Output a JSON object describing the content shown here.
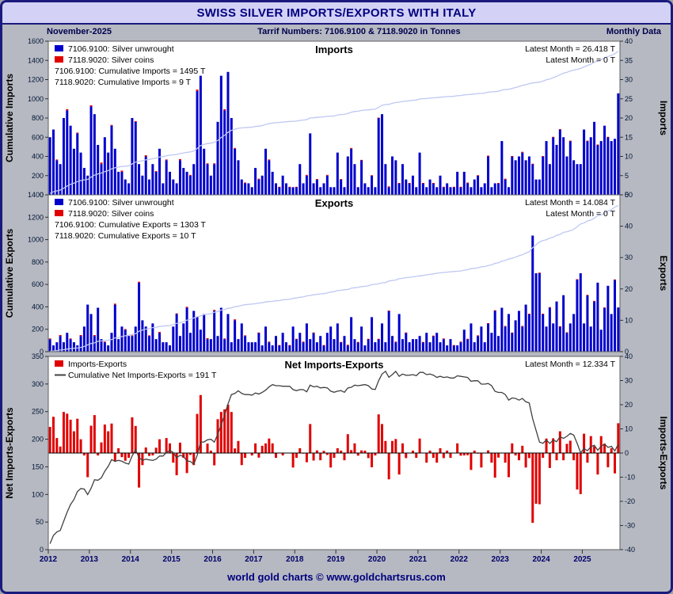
{
  "header": {
    "title": "SWISS SILVER IMPORTS/EXPORTS WITH ITALY"
  },
  "subheader": {
    "date": "November-2025",
    "tariff": "Tarrif Numbers: 7106.9100 & 7118.9020 in Tonnes",
    "frequency": "Monthly Data"
  },
  "footer": {
    "credit": "world gold charts © www.goldchartsrus.com"
  },
  "colors": {
    "bar_blue": "#0000cc",
    "bar_red": "#e00000",
    "cumulative_faint": "#bfc8f2",
    "cumulative_net": "#404040",
    "frame_navy": "#1a1a7e",
    "title_bg": "#d3d1f5",
    "margin_gray": "#b6b9c1"
  },
  "x_axis": {
    "start_year": 2012,
    "start_month": 1,
    "months": 167,
    "tick_years": [
      2012,
      2013,
      2014,
      2015,
      2016,
      2017,
      2018,
      2019,
      2020,
      2021,
      2022,
      2023,
      2024,
      2025
    ]
  },
  "chart_data": [
    {
      "type": "bar",
      "panel": "imports",
      "title": "Imports",
      "left_axis": {
        "label": "Cumulative Imports",
        "min": 0,
        "max": 1600,
        "step": 200
      },
      "right_axis": {
        "label": "Imports",
        "min": 0,
        "max": 40,
        "step": 5
      },
      "legend": [
        {
          "label": "7106.9100: Silver unwrought",
          "color": "#0000cc",
          "swatch": "box"
        },
        {
          "label": "7118.9020: Silver coins",
          "color": "#e00000",
          "swatch": "box"
        }
      ],
      "annotations_left": [
        "7106.9100: Cumulative Imports = 1495 T",
        "7118.9020: Cumulative Imports = 9 T"
      ],
      "annotations_right": [
        "Latest Month = 26.418 T",
        "Latest Month = 0 T"
      ],
      "latest_month_unwrought_t": 26.418,
      "latest_month_coins_t": 0,
      "cumulative": {
        "label": "Cumulative Imports",
        "color": "#bfc8f2",
        "axis": "left",
        "final_t": 1495
      },
      "series": [
        {
          "name": "7106.9100: Silver unwrought",
          "color": "#0000cc",
          "axis": "right",
          "values": [
            [
              15,
              17,
              9,
              8,
              20,
              22,
              18,
              12,
              16,
              11,
              7,
              5
            ],
            [
              23,
              21,
              13,
              8,
              15,
              11,
              18,
              12,
              6,
              6,
              4,
              3
            ],
            [
              20,
              19,
              8,
              5,
              10,
              4,
              8,
              6,
              12,
              3,
              9,
              6
            ],
            [
              4,
              3,
              9,
              7,
              6,
              5,
              8,
              27,
              31,
              12,
              8,
              5
            ],
            [
              8,
              19,
              31,
              22,
              32,
              20,
              12,
              9,
              4,
              3,
              3,
              2
            ],
            [
              7,
              4,
              5,
              12,
              9,
              6,
              3,
              2,
              5,
              3,
              2,
              2
            ],
            [
              2,
              8,
              3,
              5,
              16,
              3,
              4,
              2,
              3,
              5,
              2,
              2
            ],
            [
              11,
              4,
              2,
              10,
              12,
              8,
              2,
              9,
              3,
              2,
              5,
              2
            ],
            [
              20,
              21,
              8,
              2,
              10,
              9,
              3,
              8,
              4,
              3,
              5,
              2
            ],
            [
              11,
              3,
              2,
              4,
              3,
              2,
              5,
              2,
              3,
              2,
              2,
              6
            ],
            [
              2,
              6,
              3,
              2,
              4,
              5,
              2,
              3,
              10,
              2,
              3,
              3
            ],
            [
              14,
              4,
              2,
              10,
              9,
              10,
              11,
              9,
              10,
              8,
              4,
              4
            ],
            [
              10,
              14,
              8,
              15,
              13,
              17,
              15,
              10,
              14,
              9,
              8,
              8
            ],
            [
              17,
              14,
              15,
              19,
              13,
              14,
              18,
              15,
              14,
              14.582,
              26.418
            ]
          ]
        },
        {
          "name": "7118.9020: Silver coins",
          "color": "#e00000",
          "axis": "right",
          "values": [
            [
              0,
              0,
              0.2,
              0,
              0,
              0.3,
              0,
              0,
              0.2,
              0,
              0,
              0
            ],
            [
              0.3,
              0,
              0,
              0.4,
              0,
              0,
              0.2,
              0,
              0,
              0.3,
              0,
              0
            ],
            [
              0,
              0.2,
              0,
              0,
              0.3,
              0,
              0,
              0.2,
              0,
              0,
              0.2,
              0
            ],
            [
              0,
              0,
              0.3,
              0,
              0,
              0.2,
              0,
              0.4,
              0,
              0,
              0.2,
              0
            ],
            [
              0.2,
              0,
              0,
              0.3,
              0,
              0,
              0.2,
              0,
              0,
              0.2,
              0,
              0
            ],
            [
              0,
              0.2,
              0,
              0,
              0.2,
              0,
              0,
              0.1,
              0,
              0,
              0.1,
              0
            ],
            [
              0.1,
              0,
              0,
              0.2,
              0,
              0,
              0.1,
              0,
              0,
              0.2,
              0,
              0
            ],
            [
              0,
              0.1,
              0,
              0,
              0.2,
              0,
              0,
              0.1,
              0,
              0,
              0.1,
              0
            ],
            [
              0.1,
              0,
              0,
              0.2,
              0,
              0,
              0.1,
              0,
              0,
              0.1,
              0,
              0
            ],
            [
              0,
              0.1,
              0,
              0,
              0.1,
              0,
              0,
              0.1,
              0,
              0,
              0.1,
              0
            ],
            [
              0.1,
              0,
              0.2,
              0,
              0,
              0.1,
              0,
              0,
              0.2,
              0,
              0,
              0.1
            ],
            [
              0,
              0.2,
              0,
              0.1,
              0,
              0,
              0.2,
              0,
              0,
              0.1,
              0,
              0
            ],
            [
              0.1,
              0,
              0,
              0.1,
              0,
              0.1,
              0,
              0,
              0.1,
              0,
              0,
              0
            ],
            [
              0,
              0.1,
              0,
              0,
              0.1,
              0,
              0,
              0.1,
              0,
              0,
              0
            ]
          ]
        }
      ]
    },
    {
      "type": "bar",
      "panel": "exports",
      "title": "Exports",
      "left_axis": {
        "label": "Cumulative Exports",
        "min": 0,
        "max": 1400,
        "step": 200
      },
      "right_axis": {
        "label": "Exports",
        "min": 0,
        "max": 50,
        "step": 10
      },
      "legend": [
        {
          "label": "7106.9100: Silver unwrought",
          "color": "#0000cc",
          "swatch": "box"
        },
        {
          "label": "7118.9020: Silver coins",
          "color": "#e00000",
          "swatch": "box"
        }
      ],
      "annotations_left": [
        "7106.9100: Cumulative Exports = 1303 T",
        "7118.9020: Cumulative Exports = 10 T"
      ],
      "annotations_right": [
        "Latest Month = 14.084 T",
        "Latest Month = 0 T"
      ],
      "latest_month_unwrought_t": 14.084,
      "latest_month_coins_t": 0,
      "cumulative": {
        "label": "Cumulative Exports",
        "color": "#bfc8f2",
        "axis": "left",
        "final_t": 1303
      },
      "series": [
        {
          "name": "7106.9100: Silver unwrought",
          "color": "#0000cc",
          "axis": "right",
          "values": [
            [
              4,
              2,
              3,
              5,
              3,
              6,
              4,
              3,
              2,
              5,
              8,
              15
            ],
            [
              12,
              5,
              14,
              4,
              3,
              2,
              6,
              15,
              4,
              8,
              7,
              5
            ],
            [
              5,
              8,
              22,
              10,
              8,
              5,
              9,
              4,
              6,
              3,
              3,
              2
            ],
            [
              8,
              12,
              5,
              9,
              14,
              6,
              13,
              11,
              7,
              12,
              4,
              4
            ],
            [
              13,
              5,
              14,
              4,
              12,
              3,
              10,
              4,
              9,
              5,
              3,
              3
            ],
            [
              3,
              6,
              2,
              8,
              3,
              2,
              5,
              2,
              6,
              3,
              2,
              8
            ],
            [
              4,
              6,
              3,
              9,
              4,
              6,
              3,
              5,
              2,
              6,
              8,
              4
            ],
            [
              9,
              3,
              5,
              2,
              11,
              4,
              3,
              8,
              2,
              4,
              11,
              3
            ],
            [
              4,
              9,
              3,
              13,
              5,
              3,
              12,
              4,
              6,
              3,
              4,
              4
            ],
            [
              5,
              3,
              6,
              3,
              5,
              6,
              3,
              4,
              2,
              4,
              2,
              2
            ],
            [
              3,
              7,
              4,
              9,
              3,
              5,
              8,
              3,
              9,
              6,
              13,
              5
            ],
            [
              14,
              8,
              12,
              6,
              10,
              13,
              8,
              15,
              12,
              37,
              25,
              25
            ],
            [
              12,
              8,
              14,
              9,
              16,
              8,
              18,
              6,
              9,
              12,
              23,
              25
            ],
            [
              9,
              18,
              8,
              16,
              22,
              7,
              14,
              21,
              12,
              22.916,
              14.084
            ]
          ]
        },
        {
          "name": "7118.9020: Silver coins",
          "color": "#e00000",
          "axis": "right",
          "values": [
            [
              0.2,
              0,
              0,
              0.3,
              0,
              0,
              0.2,
              0,
              0,
              0.3,
              0,
              0
            ],
            [
              0,
              0.3,
              0,
              0,
              0.2,
              0,
              0,
              0.3,
              0,
              0,
              0.2,
              0
            ],
            [
              0.2,
              0,
              0.3,
              0,
              0,
              0.2,
              0,
              0,
              0.3,
              0,
              0,
              0
            ],
            [
              0,
              0.2,
              0,
              0,
              0.3,
              0,
              0,
              0.2,
              0,
              0,
              0.3,
              0
            ],
            [
              0.3,
              0,
              0,
              0.2,
              0,
              0,
              0.3,
              0,
              0,
              0.2,
              0,
              0
            ],
            [
              0,
              0.1,
              0,
              0,
              0.2,
              0,
              0,
              0.1,
              0,
              0,
              0.1,
              0
            ],
            [
              0.1,
              0,
              0.2,
              0,
              0,
              0.1,
              0,
              0,
              0.1,
              0,
              0,
              0
            ],
            [
              0,
              0.1,
              0,
              0.2,
              0,
              0,
              0.1,
              0,
              0,
              0.1,
              0,
              0
            ],
            [
              0.1,
              0,
              0,
              0.1,
              0,
              0.2,
              0,
              0,
              0.1,
              0,
              0,
              0
            ],
            [
              0,
              0.1,
              0,
              0,
              0.1,
              0,
              0,
              0.2,
              0,
              0,
              0.1,
              0
            ],
            [
              0.2,
              0,
              0.1,
              0,
              0,
              0.2,
              0,
              0,
              0.1,
              0,
              0.2,
              0
            ],
            [
              0,
              0.2,
              0,
              0.1,
              0,
              0,
              0.2,
              0,
              0.1,
              0,
              0,
              0.2
            ],
            [
              0.1,
              0,
              0.2,
              0,
              0,
              0.1,
              0,
              0.2,
              0,
              0,
              0.1,
              0
            ],
            [
              0,
              0.1,
              0,
              0.2,
              0,
              0,
              0.1,
              0,
              0,
              0.1,
              0
            ]
          ]
        }
      ]
    },
    {
      "type": "bar",
      "panel": "net",
      "title": "Net Imports-Exports",
      "left_axis": {
        "label": "Net Imports-Exports",
        "min": 0,
        "max": 350,
        "step": 50
      },
      "right_axis": {
        "label": "Imports-Exports",
        "min": -40,
        "max": 40,
        "step": 10
      },
      "legend": [
        {
          "label": "Imports-Exports",
          "color": "#e00000",
          "swatch": "box"
        },
        {
          "label": "Cumulative Net Imports-Exports = 191 T",
          "color": "#404040",
          "swatch": "line"
        }
      ],
      "annotations_left": [],
      "annotations_right": [
        "Latest Month = 12.334 T"
      ],
      "latest_month_t": 12.334,
      "cumulative": {
        "label": "Cumulative Net Imports-Exports",
        "color": "#404040",
        "axis": "left",
        "final_t": 191
      },
      "series": [
        {
          "name": "Imports-Exports",
          "color": "#e00000",
          "axis": "right",
          "derived": "monthly (imports unwrought+coins) minus (exports unwrought+coins), computed from the two panels above"
        }
      ]
    }
  ]
}
